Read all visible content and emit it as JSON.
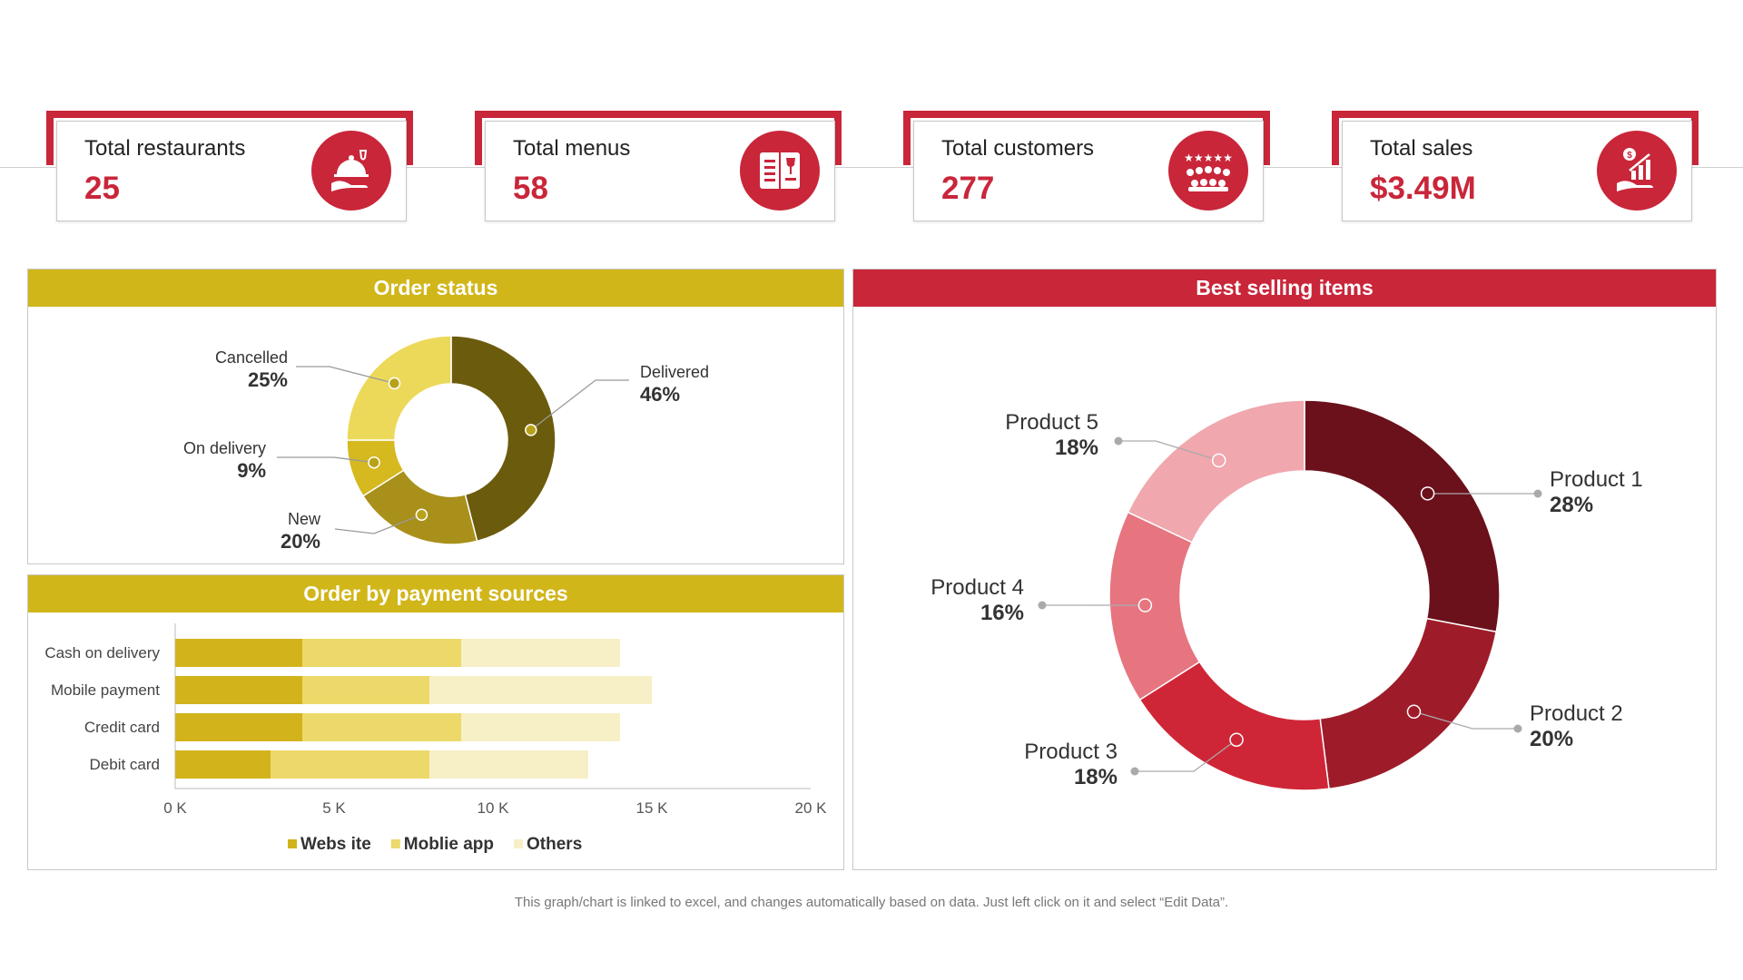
{
  "kpis": [
    {
      "title": "Total restaurants",
      "value": "25",
      "icon": "restaurant-service-icon"
    },
    {
      "title": "Total menus",
      "value": "58",
      "icon": "menu-book-icon"
    },
    {
      "title": "Total customers",
      "value": "277",
      "icon": "customers-rating-icon"
    },
    {
      "title": "Total sales",
      "value": "$3.49M",
      "icon": "sales-growth-icon"
    }
  ],
  "colors": {
    "red": "#c9263a",
    "gold": "#d1b61a"
  },
  "chart_data": [
    {
      "type": "pie",
      "title": "Order status",
      "donut": true,
      "categories": [
        "Delivered",
        "New",
        "On delivery",
        "Cancelled"
      ],
      "values": [
        46,
        20,
        9,
        25
      ],
      "labels": [
        "46%",
        "20%",
        "9%",
        "25%"
      ],
      "colors": [
        "#6b5b0c",
        "#a8901a",
        "#d6b81f",
        "#ecd95a"
      ]
    },
    {
      "type": "bar",
      "orientation": "horizontal",
      "stacked": true,
      "title": "Order by payment sources",
      "categories": [
        "Cash on delivery",
        "Mobile payment",
        "Credit card",
        "Debit card"
      ],
      "series": [
        {
          "name": "Webs ite",
          "values": [
            4000,
            4000,
            4000,
            3000
          ],
          "color": "#d3b31c"
        },
        {
          "name": "Moblie app",
          "values": [
            5000,
            4000,
            5000,
            5000
          ],
          "color": "#ecd96a"
        },
        {
          "name": "Others",
          "values": [
            5000,
            7000,
            5000,
            5000
          ],
          "color": "#f7efc6"
        }
      ],
      "xlim": [
        0,
        20000
      ],
      "xticks": [
        "0 K",
        "5 K",
        "10 K",
        "15 K",
        "20 K"
      ],
      "legend": "bottom"
    },
    {
      "type": "pie",
      "title": "Best selling items",
      "donut": true,
      "categories": [
        "Product 1",
        "Product 2",
        "Product 3",
        "Product 4",
        "Product 5"
      ],
      "values": [
        28,
        20,
        18,
        16,
        18
      ],
      "labels": [
        "28%",
        "20%",
        "18%",
        "16%",
        "18%"
      ],
      "colors": [
        "#6b111b",
        "#9e1c2a",
        "#cf2637",
        "#e67580",
        "#f0a7ad"
      ]
    }
  ],
  "footnote": "This graph/chart is linked to excel, and changes automatically based on data. Just left click on it and select “Edit Data”."
}
